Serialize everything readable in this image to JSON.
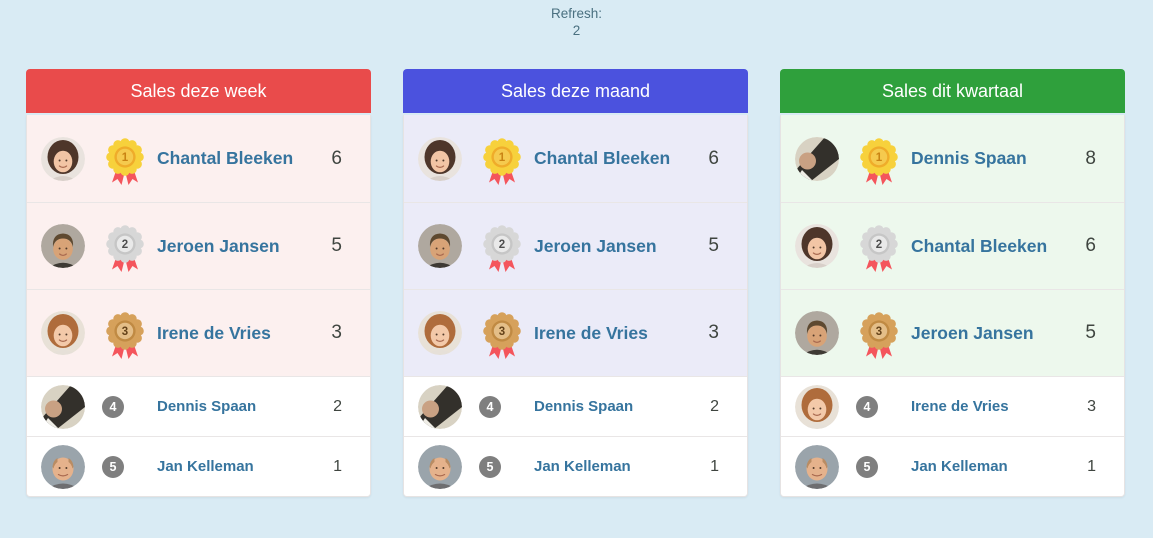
{
  "page": {
    "background": "#D9EBF4",
    "refresh_label": "Refresh:",
    "refresh_value": "2"
  },
  "colors": {
    "name_text": "#36749E",
    "score_text": "#3F4540",
    "rank_badge_gray": "#7F7F7F",
    "row_white": "#FFFFFF"
  },
  "medal_colors": {
    "gold": {
      "outer": "#F7D13C",
      "mid": "#EFAC2A",
      "center": "#F5CA4E",
      "num": "#C98313",
      "ribbon": "#F4555C"
    },
    "silver": {
      "outer": "#D7D7D7",
      "mid": "#C6C6C6",
      "center": "#E9E9E9",
      "num": "#4E4E4E",
      "ribbon": "#F4555C"
    },
    "bronze": {
      "outer": "#D6A15B",
      "mid": "#C08A43",
      "center": "#E4BE88",
      "num": "#64421A",
      "ribbon": "#F4555C"
    }
  },
  "avatars": {
    "chantal": {
      "style": "long",
      "bg": "#E9E3DE",
      "hair": "#4E362A",
      "skin": "#F2C5A5",
      "shirt": "#D8CFC9"
    },
    "jeroen": {
      "style": "short",
      "bg": "#AFA89F",
      "hair": "#5E4930",
      "skin": "#D8A377",
      "shirt": "#3E3A34"
    },
    "irene": {
      "style": "long",
      "bg": "#E8E1D7",
      "hair": "#AF6C3C",
      "skin": "#F3C9A9",
      "shirt": "#E6E0D8"
    },
    "dennis": {
      "style": "side",
      "bg": "#D8D2C3",
      "hair": "#33302B",
      "skin": "#C9A183",
      "shirt": "#EFEDE6"
    },
    "jan": {
      "style": "bald",
      "bg": "#9AA4AB",
      "hair": "#B98C63",
      "skin": "#E5B28C",
      "shirt": "#6E6E70"
    }
  },
  "panels": [
    {
      "title": "Sales deze week",
      "header_color": "#E94B4B",
      "row_tint": "#FCF0EF",
      "rows": [
        {
          "rank": 1,
          "name": "Chantal Bleeken",
          "score": 6,
          "medal": "gold",
          "avatar": "chantal"
        },
        {
          "rank": 2,
          "name": "Jeroen Jansen",
          "score": 5,
          "medal": "silver",
          "avatar": "jeroen"
        },
        {
          "rank": 3,
          "name": "Irene de Vries",
          "score": 3,
          "medal": "bronze",
          "avatar": "irene"
        },
        {
          "rank": 4,
          "name": "Dennis Spaan",
          "score": 2,
          "medal": null,
          "avatar": "dennis"
        },
        {
          "rank": 5,
          "name": "Jan Kelleman",
          "score": 1,
          "medal": null,
          "avatar": "jan"
        }
      ]
    },
    {
      "title": "Sales deze maand",
      "header_color": "#4B52DE",
      "row_tint": "#EBEBF8",
      "rows": [
        {
          "rank": 1,
          "name": "Chantal Bleeken",
          "score": 6,
          "medal": "gold",
          "avatar": "chantal"
        },
        {
          "rank": 2,
          "name": "Jeroen Jansen",
          "score": 5,
          "medal": "silver",
          "avatar": "jeroen"
        },
        {
          "rank": 3,
          "name": "Irene de Vries",
          "score": 3,
          "medal": "bronze",
          "avatar": "irene"
        },
        {
          "rank": 4,
          "name": "Dennis Spaan",
          "score": 2,
          "medal": null,
          "avatar": "dennis"
        },
        {
          "rank": 5,
          "name": "Jan Kelleman",
          "score": 1,
          "medal": null,
          "avatar": "jan"
        }
      ]
    },
    {
      "title": "Sales dit kwartaal",
      "header_color": "#2FA03C",
      "row_tint": "#EDF8ED",
      "rows": [
        {
          "rank": 1,
          "name": "Dennis Spaan",
          "score": 8,
          "medal": "gold",
          "avatar": "dennis"
        },
        {
          "rank": 2,
          "name": "Chantal Bleeken",
          "score": 6,
          "medal": "silver",
          "avatar": "chantal"
        },
        {
          "rank": 3,
          "name": "Jeroen Jansen",
          "score": 5,
          "medal": "bronze",
          "avatar": "jeroen"
        },
        {
          "rank": 4,
          "name": "Irene de Vries",
          "score": 3,
          "medal": null,
          "avatar": "irene"
        },
        {
          "rank": 5,
          "name": "Jan Kelleman",
          "score": 1,
          "medal": null,
          "avatar": "jan"
        }
      ]
    }
  ]
}
